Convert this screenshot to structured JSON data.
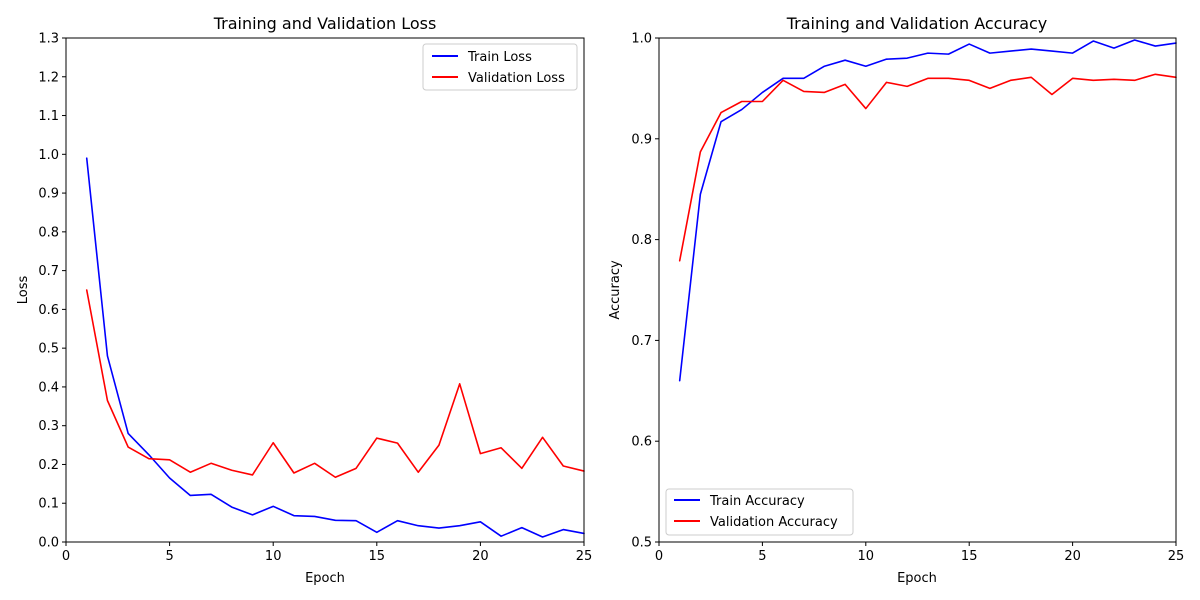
{
  "chart_data": [
    {
      "type": "line",
      "title": "Training and Validation Loss",
      "xlabel": "Epoch",
      "ylabel": "Loss",
      "xlim": [
        0,
        25
      ],
      "ylim": [
        0,
        1.3
      ],
      "xticks": [
        "0",
        "5",
        "10",
        "15",
        "20",
        "25"
      ],
      "yticks": [
        "0.0",
        "0.1",
        "0.2",
        "0.3",
        "0.4",
        "0.5",
        "0.6",
        "0.7",
        "0.8",
        "0.9",
        "1.0",
        "1.1",
        "1.2",
        "1.3"
      ],
      "legend_position": "top-right",
      "grid": false,
      "x": [
        1,
        2,
        3,
        4,
        5,
        6,
        7,
        8,
        9,
        10,
        11,
        12,
        13,
        14,
        15,
        16,
        17,
        18,
        19,
        20,
        21,
        22,
        23,
        24,
        25
      ],
      "series": [
        {
          "name": "Train Loss",
          "color": "#0000ff",
          "values": [
            0.99,
            0.48,
            0.28,
            0.225,
            0.165,
            0.12,
            0.123,
            0.09,
            0.07,
            0.092,
            0.068,
            0.066,
            0.056,
            0.055,
            0.025,
            0.055,
            0.042,
            0.036,
            0.042,
            0.052,
            0.015,
            0.037,
            0.013,
            0.032,
            0.022
          ]
        },
        {
          "name": "Validation Loss",
          "color": "#ff0000",
          "values": [
            0.65,
            0.365,
            0.245,
            0.215,
            0.212,
            0.18,
            0.203,
            0.185,
            0.173,
            0.256,
            0.178,
            0.203,
            0.167,
            0.19,
            0.268,
            0.255,
            0.18,
            0.25,
            0.408,
            0.228,
            0.243,
            0.19,
            0.27,
            0.196,
            0.183
          ]
        }
      ]
    },
    {
      "type": "line",
      "title": "Training and Validation Accuracy",
      "xlabel": "Epoch",
      "ylabel": "Accuracy",
      "xlim": [
        0,
        25
      ],
      "ylim": [
        0.5,
        1.0
      ],
      "xticks": [
        "0",
        "5",
        "10",
        "15",
        "20",
        "25"
      ],
      "yticks": [
        "0.5",
        "0.6",
        "0.7",
        "0.8",
        "0.9",
        "1.0"
      ],
      "legend_position": "bottom-left",
      "grid": false,
      "x": [
        1,
        2,
        3,
        4,
        5,
        6,
        7,
        8,
        9,
        10,
        11,
        12,
        13,
        14,
        15,
        16,
        17,
        18,
        19,
        20,
        21,
        22,
        23,
        24,
        25
      ],
      "series": [
        {
          "name": "Train Accuracy",
          "color": "#0000ff",
          "values": [
            0.66,
            0.845,
            0.917,
            0.929,
            0.946,
            0.96,
            0.96,
            0.972,
            0.978,
            0.972,
            0.979,
            0.98,
            0.985,
            0.984,
            0.994,
            0.985,
            0.987,
            0.989,
            0.987,
            0.985,
            0.997,
            0.99,
            0.998,
            0.992,
            0.995
          ]
        },
        {
          "name": "Validation Accuracy",
          "color": "#ff0000",
          "values": [
            0.779,
            0.887,
            0.926,
            0.937,
            0.937,
            0.958,
            0.947,
            0.946,
            0.954,
            0.93,
            0.956,
            0.952,
            0.96,
            0.96,
            0.958,
            0.95,
            0.958,
            0.961,
            0.944,
            0.96,
            0.958,
            0.959,
            0.958,
            0.964,
            0.961
          ]
        }
      ]
    }
  ]
}
